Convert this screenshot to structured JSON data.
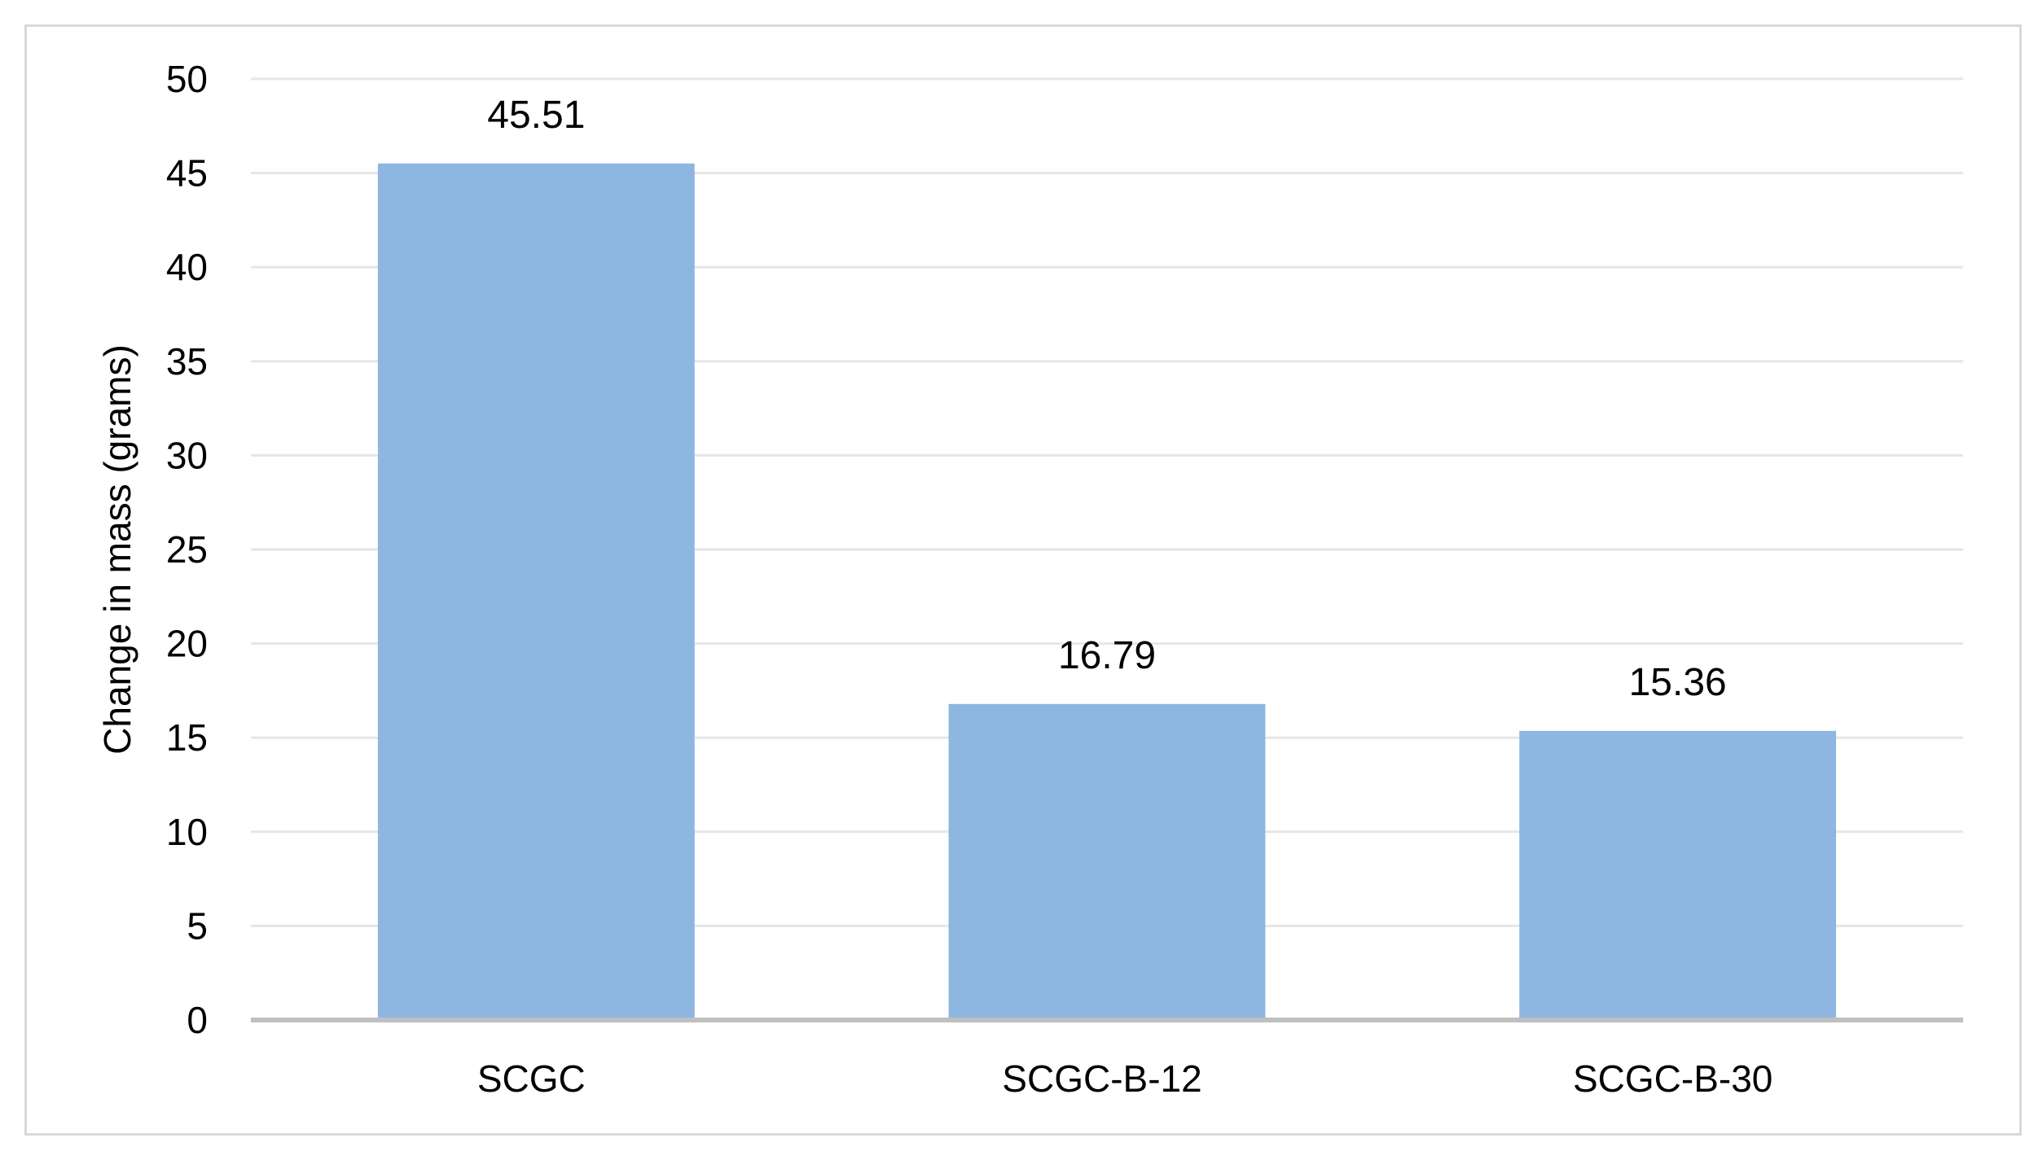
{
  "chart_data": {
    "type": "bar",
    "title": "",
    "xlabel": "",
    "ylabel": "Change in mass (grams)",
    "categories": [
      "SCGC",
      "SCGC-B-12",
      "SCGC-B-30"
    ],
    "values": [
      45.51,
      16.79,
      15.36
    ],
    "data_labels": [
      "45.51",
      "16.79",
      "15.36"
    ],
    "ylim": [
      0,
      50
    ],
    "yticks": [
      0,
      5,
      10,
      15,
      20,
      25,
      30,
      35,
      40,
      45,
      50
    ],
    "ytick_labels": [
      "0",
      "5",
      "10",
      "15",
      "20",
      "25",
      "30",
      "35",
      "40",
      "45",
      "50"
    ],
    "grid": true,
    "legend": "none",
    "colors": {
      "bar": "#8db7e1",
      "gridline": "#e6e6e6",
      "axis": "#bfbfbf",
      "frame": "#d9d9d9"
    }
  }
}
